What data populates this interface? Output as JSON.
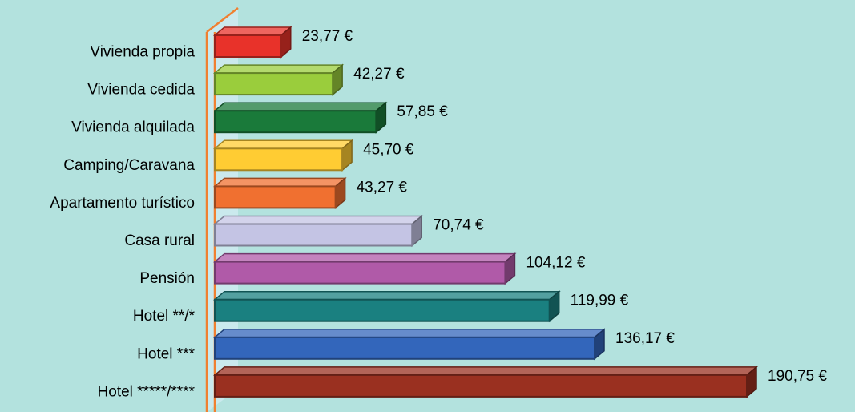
{
  "chart_data": {
    "type": "bar3d_horizontal",
    "categories": [
      "Vivienda propia",
      "Vivienda cedida",
      "Vivienda alquilada",
      "Camping/Caravana",
      "Apartamento turístico",
      "Casa rural",
      "Pensión",
      "Hotel **/*",
      "Hotel ***",
      "Hotel *****/****"
    ],
    "values": [
      23.77,
      42.27,
      57.85,
      45.7,
      43.27,
      70.74,
      104.12,
      119.99,
      136.17,
      190.75
    ],
    "value_labels": [
      "23,77 €",
      "42,27 €",
      "57,85 €",
      "45,70 €",
      "43,27 €",
      "70,74 €",
      "104,12 €",
      "119,99 €",
      "136,17 €",
      "190,75 €"
    ],
    "colors": [
      "#e8322a",
      "#9acd3c",
      "#1a7a3a",
      "#ffcc33",
      "#f07030",
      "#c4c4e4",
      "#b05aa8",
      "#1a8080",
      "#3366bb",
      "#9a3020"
    ]
  }
}
